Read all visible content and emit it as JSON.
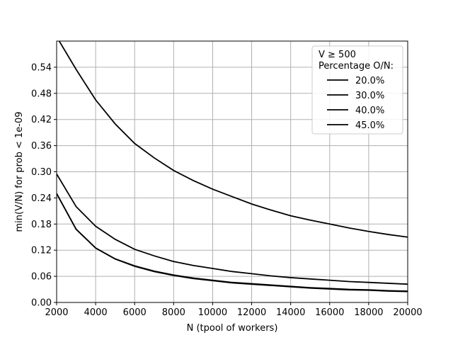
{
  "chart_data": {
    "type": "line",
    "title": "",
    "xlabel": "N (tpool of workers)",
    "ylabel": "min(V/N) for prob < 1e-09",
    "xlim": [
      2000,
      20000
    ],
    "ylim": [
      0.0,
      0.6
    ],
    "xticks": [
      2000,
      4000,
      6000,
      8000,
      10000,
      12000,
      14000,
      16000,
      18000,
      20000
    ],
    "yticks": [
      "0.00",
      "0.06",
      "0.12",
      "0.18",
      "0.24",
      "0.30",
      "0.36",
      "0.42",
      "0.48",
      "0.54"
    ],
    "grid": true,
    "legend": {
      "placement": "top-right",
      "title_line1": "V  ≥  500",
      "title_line2": "Percentage O/N:"
    },
    "x": [
      2000,
      3000,
      4000,
      5000,
      6000,
      7000,
      8000,
      9000,
      10000,
      11000,
      12000,
      13000,
      14000,
      15000,
      16000,
      17000,
      18000,
      19000,
      20000
    ],
    "series": [
      {
        "name": "20.0%",
        "values": [
          0.25,
          0.168,
          0.125,
          0.1,
          0.083,
          0.071,
          0.062,
          0.055,
          0.05,
          0.045,
          0.042,
          0.039,
          0.036,
          0.033,
          0.031,
          0.029,
          0.028,
          0.026,
          0.025
        ]
      },
      {
        "name": "30.0%",
        "values": [
          0.25,
          0.168,
          0.125,
          0.1,
          0.084,
          0.072,
          0.063,
          0.056,
          0.051,
          0.046,
          0.043,
          0.04,
          0.037,
          0.034,
          0.032,
          0.03,
          0.029,
          0.027,
          0.026
        ]
      },
      {
        "name": "40.0%",
        "values": [
          0.295,
          0.22,
          0.175,
          0.145,
          0.122,
          0.107,
          0.094,
          0.085,
          0.078,
          0.071,
          0.066,
          0.061,
          0.057,
          0.054,
          0.051,
          0.048,
          0.046,
          0.044,
          0.042
        ]
      },
      {
        "name": "45.0%",
        "values": [
          0.61,
          0.535,
          0.465,
          0.41,
          0.365,
          0.332,
          0.303,
          0.28,
          0.26,
          0.243,
          0.226,
          0.212,
          0.199,
          0.189,
          0.18,
          0.171,
          0.163,
          0.156,
          0.15
        ]
      }
    ]
  }
}
